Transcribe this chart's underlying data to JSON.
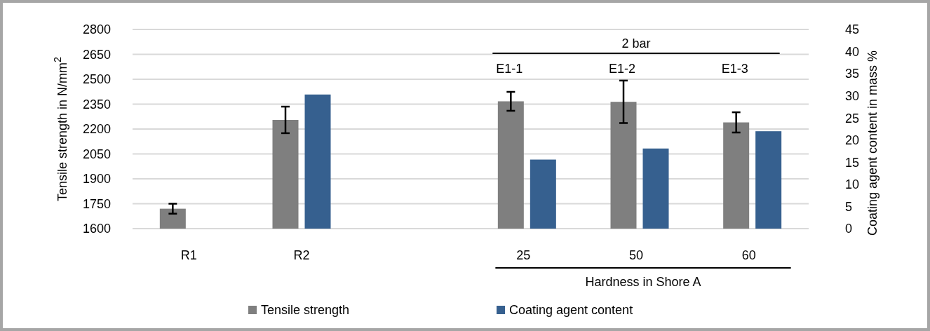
{
  "chart_data": {
    "type": "bar",
    "categories": [
      "R1",
      "R2",
      null,
      "25",
      "50",
      "60"
    ],
    "series": [
      {
        "name": "Tensile strength",
        "color": "#7f7f7f",
        "values": [
          1720,
          2255,
          null,
          2367,
          2364,
          2240
        ],
        "errors": [
          30,
          80,
          null,
          57,
          128,
          61
        ]
      },
      {
        "name": "Coating agent content",
        "color": "#36608f",
        "axis": "y2",
        "values": [
          null,
          30.3,
          null,
          15.6,
          18.1,
          22.0
        ]
      }
    ],
    "ylim": [
      1600,
      2800
    ],
    "yticks": [
      1600,
      1750,
      1900,
      2050,
      2200,
      2350,
      2500,
      2650,
      2800
    ],
    "y2lim": [
      0,
      45
    ],
    "y2ticks": [
      0,
      5,
      10,
      15,
      20,
      25,
      30,
      35,
      40,
      45
    ],
    "ylabel": "Tensile strength in N/mm$^{2}$",
    "y2label": "Coating agent content in mass %",
    "xlabel": "Hardness in Shore A",
    "annotations": [
      "2 bar",
      "E1-1",
      "E1-2",
      "E1-3"
    ],
    "grid": "y",
    "legend": "bottom"
  }
}
